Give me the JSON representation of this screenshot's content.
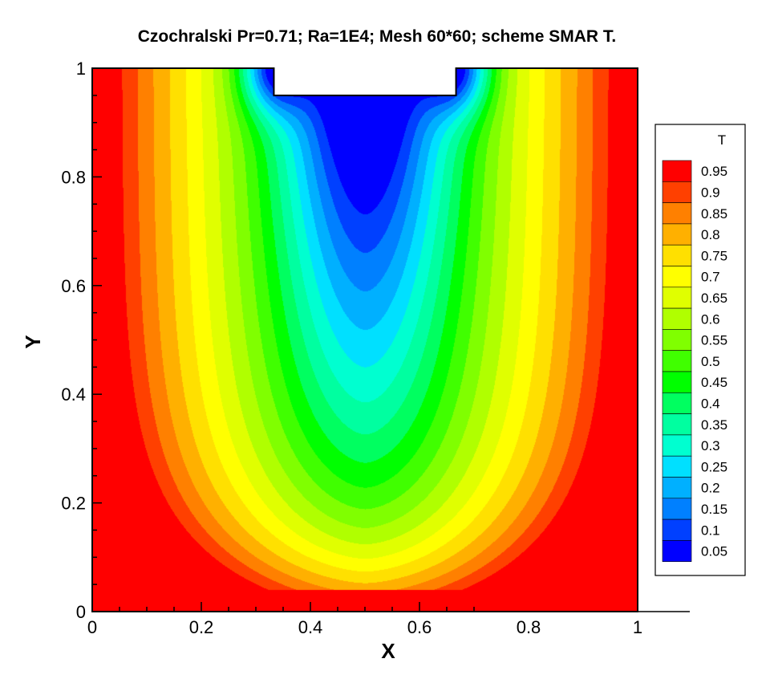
{
  "chart_data": {
    "type": "heatmap",
    "subtype": "filled-contour",
    "title": "Czochralski Pr=0.71; Ra=1E4; Mesh 60*60; scheme SMAR T.",
    "xlabel": "X",
    "ylabel": "Y",
    "xlim": [
      0,
      1
    ],
    "ylim": [
      0,
      1
    ],
    "x_ticks": [
      "0",
      "0.2",
      "0.4",
      "0.6",
      "0.8",
      "1"
    ],
    "y_ticks": [
      "0",
      "0.2",
      "0.4",
      "0.6",
      "0.8",
      "1"
    ],
    "variable": "T",
    "crystal_region": {
      "x_range": [
        0.333,
        0.667
      ],
      "y_range": [
        0.95,
        1.0
      ]
    },
    "field_min": 0.0,
    "field_max": 1.0,
    "levels": [
      0.05,
      0.1,
      0.15,
      0.2,
      0.25,
      0.3,
      0.35,
      0.4,
      0.45,
      0.5,
      0.55,
      0.6,
      0.65,
      0.7,
      0.75,
      0.8,
      0.85,
      0.9,
      0.95
    ],
    "level_labels": [
      "0.95",
      "0.9",
      "0.85",
      "0.8",
      "0.75",
      "0.7",
      "0.65",
      "0.6",
      "0.55",
      "0.5",
      "0.45",
      "0.4",
      "0.35",
      "0.3",
      "0.25",
      "0.2",
      "0.15",
      "0.1",
      "0.05"
    ],
    "colors": [
      "#0000ff",
      "#0040ff",
      "#0080ff",
      "#00b0ff",
      "#00e0ff",
      "#00ffd0",
      "#00ffa0",
      "#00ff60",
      "#00ff00",
      "#40ff00",
      "#80ff00",
      "#b0ff00",
      "#e0ff00",
      "#ffff00",
      "#ffe000",
      "#ffb000",
      "#ff8000",
      "#ff4000",
      "#ff0000"
    ],
    "legend": {
      "title": "T",
      "position": "right"
    },
    "grid": false
  }
}
